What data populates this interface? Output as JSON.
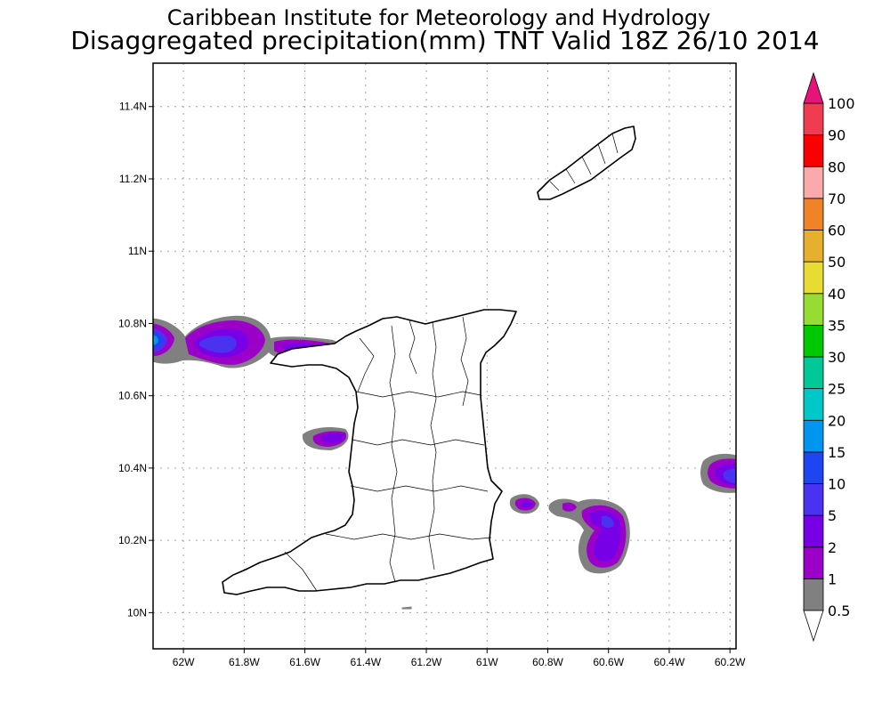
{
  "header": {
    "institute": "Caribbean Institute for Meteorology and Hydrology",
    "product": "Disaggregated precipitation(mm) TNT Valid 18Z 26/10 2014"
  },
  "map": {
    "lon_range": [
      -62.1,
      -60.18
    ],
    "lat_range": [
      9.9,
      11.52
    ],
    "lat_ticks": [
      {
        "value": 11.4,
        "label": "11.4N"
      },
      {
        "value": 11.2,
        "label": "11.2N"
      },
      {
        "value": 11.0,
        "label": "11N"
      },
      {
        "value": 10.8,
        "label": "10.8N"
      },
      {
        "value": 10.6,
        "label": "10.6N"
      },
      {
        "value": 10.4,
        "label": "10.4N"
      },
      {
        "value": 10.2,
        "label": "10.2N"
      },
      {
        "value": 10.0,
        "label": "10N"
      }
    ],
    "lon_ticks": [
      {
        "value": -62.0,
        "label": "62W"
      },
      {
        "value": -61.8,
        "label": "61.8W"
      },
      {
        "value": -61.6,
        "label": "61.6W"
      },
      {
        "value": -61.4,
        "label": "61.4W"
      },
      {
        "value": -61.2,
        "label": "61.2W"
      },
      {
        "value": -61.0,
        "label": "61W"
      },
      {
        "value": -60.8,
        "label": "60.8W"
      },
      {
        "value": -60.6,
        "label": "60.6W"
      },
      {
        "value": -60.4,
        "label": "60.4W"
      },
      {
        "value": -60.2,
        "label": "60.2W"
      }
    ],
    "gridlines": true
  },
  "colorbar": {
    "levels": [
      "0.5",
      "1",
      "2",
      "5",
      "10",
      "15",
      "20",
      "25",
      "30",
      "35",
      "40",
      "50",
      "60",
      "70",
      "80",
      "90",
      "100"
    ],
    "colors": [
      "#808080",
      "#9b00c8",
      "#7800e6",
      "#4b32f0",
      "#1e46f0",
      "#0096f0",
      "#00c8c8",
      "#00c896",
      "#00c800",
      "#96dc32",
      "#e6dc32",
      "#e6af2d",
      "#f08228",
      "#faaaaa",
      "#fa0000",
      "#f03c50",
      "#e61478"
    ],
    "under_color": "#ffffff",
    "over_color": "#e61478"
  },
  "colors": {
    "gray": "#808080",
    "purple": "#9b00c8",
    "violet": "#7800e6",
    "blue": "#4b32f0",
    "deep_blue": "#1e46f0",
    "light_blue": "#0096f0",
    "cyan": "#00c8c8"
  }
}
